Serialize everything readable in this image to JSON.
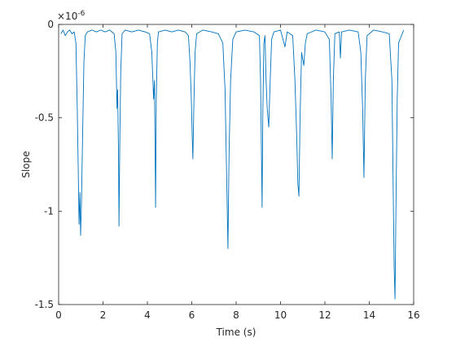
{
  "chart_data": {
    "type": "line",
    "xlabel": "Time (s)",
    "ylabel": "Slope",
    "exponent": {
      "base": "×10",
      "power": "-6"
    },
    "color": "#0072bd",
    "xlim": [
      0,
      16
    ],
    "xticks": [
      0,
      2,
      4,
      6,
      8,
      10,
      12,
      14,
      16
    ],
    "ylim": [
      -1.5,
      0
    ],
    "yticks": [
      -1.5,
      -1,
      -0.5,
      0
    ],
    "x": [
      0.1,
      0.2,
      0.3,
      0.4,
      0.5,
      0.6,
      0.7,
      0.78,
      0.84,
      0.88,
      0.92,
      0.96,
      0.99,
      1.03,
      1.08,
      1.14,
      1.2,
      1.3,
      1.5,
      1.7,
      1.9,
      2.1,
      2.3,
      2.5,
      2.58,
      2.63,
      2.66,
      2.7,
      2.72,
      2.76,
      2.8,
      2.86,
      3.0,
      3.3,
      3.6,
      3.9,
      4.1,
      4.2,
      4.28,
      4.32,
      4.37,
      4.4,
      4.45,
      4.5,
      4.8,
      5.1,
      5.4,
      5.7,
      5.85,
      5.92,
      5.98,
      6.02,
      6.05,
      6.1,
      6.15,
      6.22,
      6.5,
      6.9,
      7.2,
      7.4,
      7.5,
      7.57,
      7.63,
      7.68,
      7.75,
      7.85,
      8.0,
      8.4,
      8.8,
      9.05,
      9.1,
      9.17,
      9.2,
      9.25,
      9.3,
      9.35,
      9.4,
      9.47,
      9.52,
      9.6,
      9.7,
      10.0,
      10.2,
      10.3,
      10.55,
      10.65,
      10.73,
      10.78,
      10.83,
      10.88,
      10.95,
      11.05,
      11.12,
      11.2,
      11.6,
      12.0,
      12.2,
      12.28,
      12.33,
      12.38,
      12.45,
      12.65,
      12.7,
      12.75,
      13.1,
      13.5,
      13.62,
      13.7,
      13.76,
      13.82,
      13.9,
      14.2,
      14.6,
      14.9,
      15.02,
      15.08,
      15.12,
      15.16,
      15.2,
      15.26,
      15.32,
      15.45,
      15.55
    ],
    "values": [
      -0.05,
      -0.03,
      -0.06,
      -0.04,
      -0.03,
      -0.05,
      -0.04,
      -0.1,
      -0.45,
      -0.75,
      -1.07,
      -0.9,
      -1.13,
      -0.95,
      -0.6,
      -0.2,
      -0.06,
      -0.04,
      -0.03,
      -0.04,
      -0.03,
      -0.04,
      -0.03,
      -0.05,
      -0.15,
      -0.45,
      -0.35,
      -0.7,
      -1.08,
      -0.6,
      -0.25,
      -0.05,
      -0.03,
      -0.04,
      -0.03,
      -0.04,
      -0.05,
      -0.15,
      -0.4,
      -0.3,
      -0.98,
      -0.4,
      -0.1,
      -0.04,
      -0.03,
      -0.04,
      -0.03,
      -0.04,
      -0.06,
      -0.2,
      -0.4,
      -0.6,
      -0.72,
      -0.4,
      -0.15,
      -0.05,
      -0.03,
      -0.04,
      -0.05,
      -0.1,
      -0.35,
      -0.8,
      -1.2,
      -0.7,
      -0.3,
      -0.08,
      -0.04,
      -0.03,
      -0.04,
      -0.06,
      -0.3,
      -0.98,
      -0.5,
      -0.1,
      -0.06,
      -0.3,
      -0.45,
      -0.55,
      -0.35,
      -0.08,
      -0.04,
      -0.03,
      -0.12,
      -0.04,
      -0.06,
      -0.3,
      -0.6,
      -0.85,
      -0.92,
      -0.5,
      -0.15,
      -0.22,
      -0.1,
      -0.05,
      -0.03,
      -0.04,
      -0.08,
      -0.4,
      -0.72,
      -0.3,
      -0.05,
      -0.04,
      -0.18,
      -0.04,
      -0.03,
      -0.04,
      -0.15,
      -0.45,
      -0.82,
      -0.3,
      -0.06,
      -0.03,
      -0.04,
      -0.05,
      -0.3,
      -0.9,
      -1.3,
      -1.47,
      -1.0,
      -0.4,
      -0.1,
      -0.06,
      -0.03
    ]
  }
}
